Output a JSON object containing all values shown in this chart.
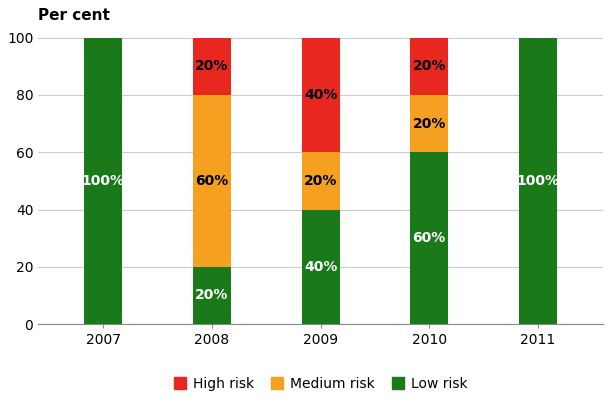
{
  "years": [
    "2007",
    "2008",
    "2009",
    "2010",
    "2011"
  ],
  "low_risk": [
    100,
    20,
    40,
    60,
    100
  ],
  "medium_risk": [
    0,
    60,
    20,
    20,
    0
  ],
  "high_risk": [
    0,
    20,
    40,
    20,
    0
  ],
  "colors": {
    "low": "#1a7a1a",
    "medium": "#f5a020",
    "high": "#e8281e"
  },
  "ylabel": "Per cent",
  "ylim": [
    0,
    100
  ],
  "yticks": [
    0,
    20,
    40,
    60,
    80,
    100
  ],
  "legend_labels": [
    "High risk",
    "Medium risk",
    "Low risk"
  ],
  "bar_width": 0.35,
  "label_fontsize": 10,
  "axis_fontsize": 10,
  "legend_fontsize": 10,
  "low_label_color": "white",
  "medium_label_color": "black",
  "high_label_color": "black"
}
